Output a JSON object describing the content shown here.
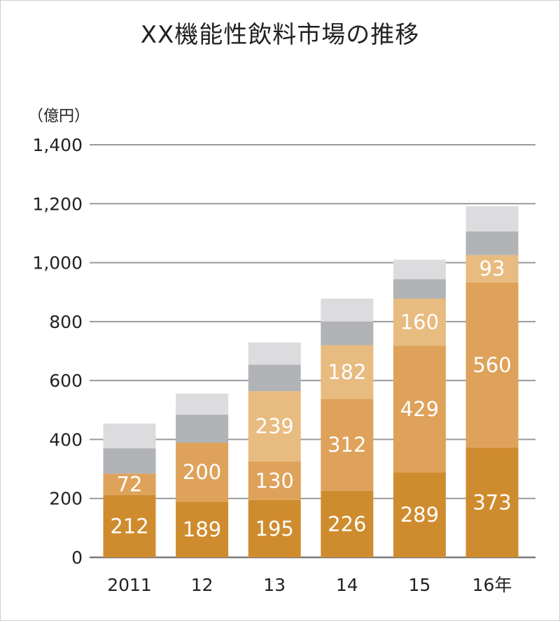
{
  "chart_data": {
    "type": "bar",
    "stacked": true,
    "title": "XX機能性飲料市場の推移",
    "unit_label": "（億円）",
    "categories": [
      "2011",
      "12",
      "13",
      "14",
      "15",
      "16年"
    ],
    "ylim": [
      0,
      1400
    ],
    "yticks": [
      0,
      200,
      400,
      600,
      800,
      1000,
      1200,
      1400
    ],
    "ytick_labels": [
      "0",
      "200",
      "400",
      "600",
      "800",
      "1,000",
      "1,200",
      "1,400"
    ],
    "grid": true,
    "series": [
      {
        "values": [
          212,
          189,
          195,
          226,
          289,
          373
        ],
        "color": "#cf8c2e",
        "labeled": true
      },
      {
        "values": [
          72,
          200,
          130,
          312,
          429,
          560
        ],
        "color": "#dea25a",
        "labeled": true
      },
      {
        "values": [
          0,
          0,
          239,
          182,
          160,
          93
        ],
        "color": "#e8bb80",
        "labeled": true
      },
      {
        "values": [
          86,
          95,
          90,
          80,
          66,
          80
        ],
        "color": "#b2b3b6",
        "labeled": false
      },
      {
        "values": [
          84,
          72,
          75,
          78,
          66,
          85
        ],
        "color": "#dcdcde",
        "labeled": false
      }
    ]
  }
}
